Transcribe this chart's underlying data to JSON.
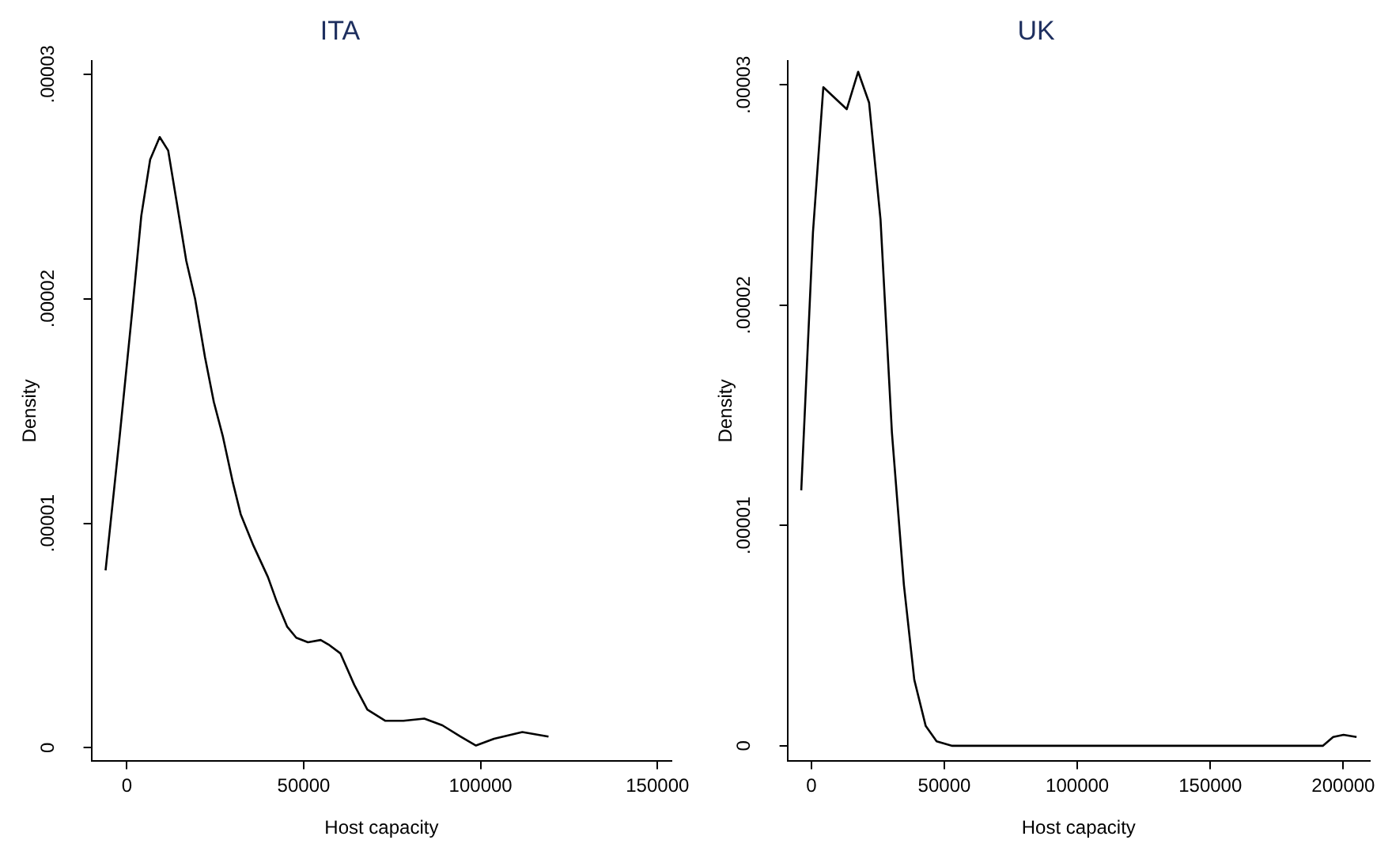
{
  "chart_data": [
    {
      "type": "line",
      "title": "ITA",
      "xlabel": "Host capacity",
      "ylabel": "Density",
      "grid": false,
      "legend": false,
      "marker": "none",
      "line_style": "solid",
      "xlim": [
        -10000,
        154000
      ],
      "xticks": [
        0,
        50000,
        100000,
        150000
      ],
      "ylim": [
        -6e-07,
        3.06e-05
      ],
      "yticks": [
        0,
        {
          "value": 1e-05,
          "label": ".00001"
        },
        {
          "value": 2e-05,
          "label": ".00002"
        },
        {
          "value": 3e-05,
          "label": ".00003"
        }
      ],
      "series": [
        {
          "color": "#000000",
          "x": [
            -6000,
            -2000,
            1500,
            4100,
            6600,
            9300,
            11700,
            13900,
            16800,
            19300,
            22100,
            24600,
            27100,
            30000,
            32200,
            35800,
            39900,
            42400,
            45300,
            47900,
            51200,
            54800,
            57000,
            60400,
            64300,
            68000,
            73100,
            78200,
            84100,
            89200,
            94300,
            98700,
            103800,
            111800,
            119200
          ],
          "values": [
            7.9e-06,
            1.39e-05,
            1.94e-05,
            2.37e-05,
            2.62e-05,
            2.72e-05,
            2.66e-05,
            2.45e-05,
            2.17e-05,
            2e-05,
            1.74e-05,
            1.54e-05,
            1.39e-05,
            1.18e-05,
            1.04e-05,
            9e-06,
            7.6e-06,
            6.5e-06,
            5.4e-06,
            4.9e-06,
            4.7e-06,
            4.8e-06,
            4.6e-06,
            4.2e-06,
            2.8e-06,
            1.7e-06,
            1.2e-06,
            1.2e-06,
            1.3e-06,
            1e-06,
            5e-07,
            1e-07,
            4e-07,
            7e-07,
            5e-07
          ]
        }
      ]
    },
    {
      "type": "line",
      "title": "UK",
      "xlabel": "Host capacity",
      "ylabel": "Density",
      "grid": false,
      "legend": false,
      "marker": "none",
      "line_style": "solid",
      "xlim": [
        -9000,
        210000
      ],
      "xticks": [
        0,
        50000,
        100000,
        150000,
        200000
      ],
      "ylim": [
        -7e-07,
        3.11e-05
      ],
      "yticks": [
        0,
        {
          "value": 1e-05,
          "label": ".00001"
        },
        {
          "value": 2e-05,
          "label": ".00002"
        },
        {
          "value": 3e-05,
          "label": ".00003"
        }
      ],
      "series": [
        {
          "color": "#000000",
          "x": [
            -3800,
            600,
            4500,
            13300,
            17600,
            21700,
            26000,
            30300,
            34800,
            38700,
            43000,
            47100,
            53000,
            100000,
            150000,
            192300,
            196200,
            200100,
            205000
          ],
          "values": [
            1.16e-05,
            2.33e-05,
            2.99e-05,
            2.89e-05,
            3.06e-05,
            2.92e-05,
            2.39e-05,
            1.42e-05,
            7.3e-06,
            3e-06,
            9e-07,
            2e-07,
            0,
            0,
            0,
            0,
            4e-07,
            5e-07,
            4e-07
          ]
        }
      ]
    }
  ]
}
